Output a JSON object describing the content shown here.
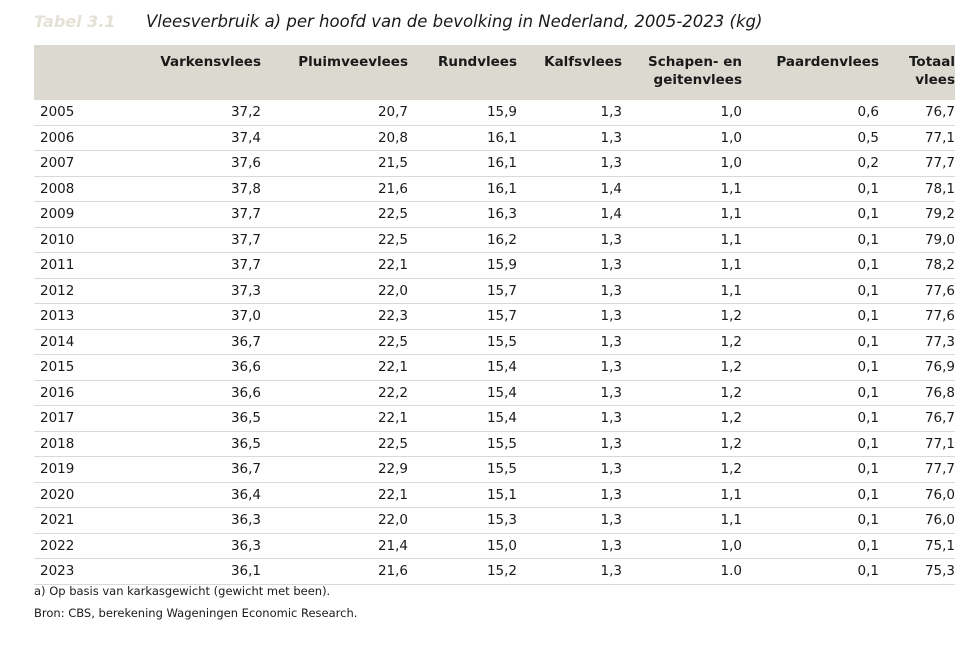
{
  "header": {
    "table_label": "Tabel 3.1",
    "title": "Vleesverbruik a) per hoofd van de bevolking in Nederland, 2005-2023 (kg)"
  },
  "columns": [
    "",
    "Varkensvlees",
    "Pluimveevlees",
    "Rundvlees",
    "Kalfsvlees",
    "Schapen- en geitenvlees",
    "Paardenvlees",
    "Totaal vlees"
  ],
  "rows": [
    [
      "2005",
      "37,2",
      "20,7",
      "15,9",
      "1,3",
      "1,0",
      "0,6",
      "76,7"
    ],
    [
      "2006",
      "37,4",
      "20,8",
      "16,1",
      "1,3",
      "1,0",
      "0,5",
      "77,1"
    ],
    [
      "2007",
      "37,6",
      "21,5",
      "16,1",
      "1,3",
      "1,0",
      "0,2",
      "77,7"
    ],
    [
      "2008",
      "37,8",
      "21,6",
      "16,1",
      "1,4",
      "1,1",
      "0,1",
      "78,1"
    ],
    [
      "2009",
      "37,7",
      "22,5",
      "16,3",
      "1,4",
      "1,1",
      "0,1",
      "79,2"
    ],
    [
      "2010",
      "37,7",
      "22,5",
      "16,2",
      "1,3",
      "1,1",
      "0,1",
      "79,0"
    ],
    [
      "2011",
      "37,7",
      "22,1",
      "15,9",
      "1,3",
      "1,1",
      "0,1",
      "78,2"
    ],
    [
      "2012",
      "37,3",
      "22,0",
      "15,7",
      "1,3",
      "1,1",
      "0,1",
      "77,6"
    ],
    [
      "2013",
      "37,0",
      "22,3",
      "15,7",
      "1,3",
      "1,2",
      "0,1",
      "77,6"
    ],
    [
      "2014",
      "36,7",
      "22,5",
      "15,5",
      "1,3",
      "1,2",
      "0,1",
      "77,3"
    ],
    [
      "2015",
      "36,6",
      "22,1",
      "15,4",
      "1,3",
      "1,2",
      "0,1",
      "76,9"
    ],
    [
      "2016",
      "36,6",
      "22,2",
      "15,4",
      "1,3",
      "1,2",
      "0,1",
      "76,8"
    ],
    [
      "2017",
      "36,5",
      "22,1",
      "15,4",
      "1,3",
      "1,2",
      "0,1",
      "76,7"
    ],
    [
      "2018",
      "36,5",
      "22,5",
      "15,5",
      "1,3",
      "1,2",
      "0,1",
      "77,1"
    ],
    [
      "2019",
      "36,7",
      "22,9",
      "15,5",
      "1,3",
      "1,2",
      "0,1",
      "77,7"
    ],
    [
      "2020",
      "36,4",
      "22,1",
      "15,1",
      "1,3",
      "1,1",
      "0,1",
      "76,0"
    ],
    [
      "2021",
      "36,3",
      "22,0",
      "15,3",
      "1,3",
      "1,1",
      "0,1",
      "76,0"
    ],
    [
      "2022",
      "36,3",
      "21,4",
      "15,0",
      "1,3",
      "1,0",
      "0,1",
      "75,1"
    ],
    [
      "2023",
      "36,1",
      "21,6",
      "15,2",
      "1,3",
      "1.0",
      "0,1",
      "75,3"
    ]
  ],
  "footnotes": {
    "note_a": "a) Op basis van karkasgewicht (gewicht met been).",
    "source": "Bron: CBS, berekening Wageningen Economic Research."
  },
  "colors": {
    "header_background": "#dcdad0",
    "table_label": "#e4e1d6",
    "row_divider": "#d9d9d9"
  }
}
